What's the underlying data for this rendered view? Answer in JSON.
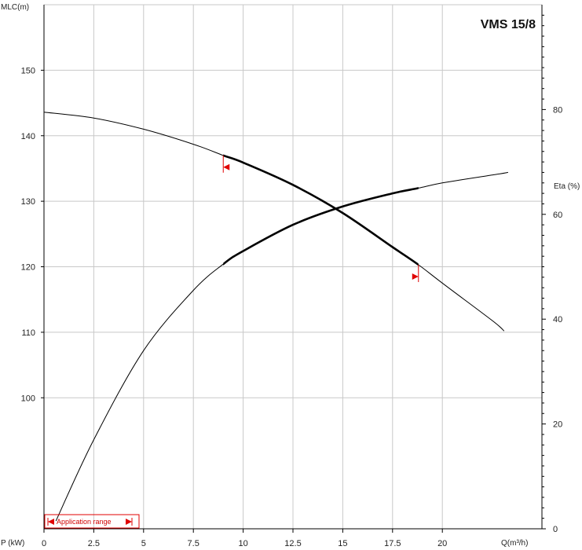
{
  "chart_data": {
    "type": "line",
    "title": "VMS 15/8",
    "x_axis": {
      "label": "Q(m³/h)",
      "range": [
        0,
        25
      ],
      "ticks": [
        0,
        2.5,
        5,
        7.5,
        10,
        12.5,
        15,
        17.5,
        20
      ],
      "tick_labels": [
        "0",
        "2.5",
        "5",
        "7.5",
        "10",
        "12.5",
        "15",
        "17.5",
        "20"
      ]
    },
    "left_axis": {
      "label": "MLC(m)",
      "range": [
        80,
        160
      ],
      "ticks": [
        100,
        110,
        120,
        130,
        140,
        150
      ],
      "tick_labels": [
        "100",
        "110",
        "120",
        "130",
        "140",
        "150"
      ]
    },
    "right_axis": {
      "label": "Eta (%)",
      "range": [
        0,
        100
      ],
      "ticks": [
        0,
        20,
        40,
        60,
        80
      ],
      "tick_labels": [
        "0",
        "20",
        "40",
        "60",
        "80"
      ]
    },
    "bottom_left_label": "P (kW)",
    "grid": true,
    "series": [
      {
        "id": "head",
        "axis": "left",
        "x": [
          0,
          2.5,
          5,
          7.5,
          9,
          10,
          12.5,
          15,
          17.5,
          18.8,
          20,
          22.5,
          23.1
        ],
        "y": [
          143.6,
          142.7,
          141.0,
          138.7,
          137.0,
          135.9,
          132.5,
          128.2,
          123.0,
          120.3,
          117.5,
          111.8,
          110.2
        ]
      },
      {
        "id": "efficiency",
        "axis": "right",
        "x": [
          0.6,
          2.5,
          5,
          7.5,
          9,
          10,
          12.5,
          15,
          17.5,
          18.8,
          20,
          22.5,
          23.3
        ],
        "y": [
          1.5,
          17.0,
          34.0,
          45.5,
          50.5,
          53.0,
          58.0,
          61.5,
          64.0,
          65.0,
          66.0,
          67.5,
          68.0
        ]
      }
    ],
    "operating_range": {
      "q_min": 9,
      "q_max": 18.8
    },
    "application_range_label": "Application range",
    "colors": {
      "curve": "#000000",
      "grid": "#c8c8c8",
      "axis": "#000000",
      "marker": "#e00000"
    }
  }
}
